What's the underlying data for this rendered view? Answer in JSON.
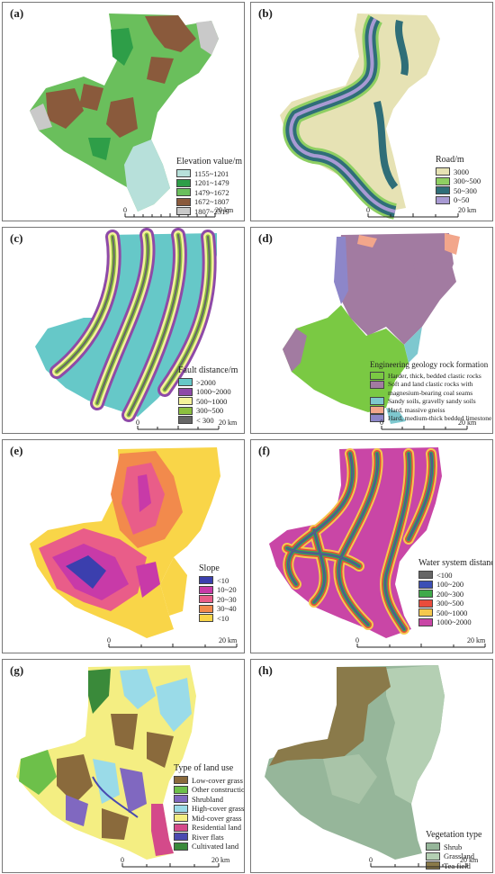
{
  "panels": [
    {
      "id": "a",
      "label": "(a)",
      "title": "Elevation value/m",
      "legend": [
        {
          "label": "1155~1201",
          "color": "#b7e0da"
        },
        {
          "label": "1201~1479",
          "color": "#2e9e48"
        },
        {
          "label": "1479~1672",
          "color": "#6abf5c"
        },
        {
          "label": "1672~1807",
          "color": "#8a5a3c"
        },
        {
          "label": "1807~2319",
          "color": "#c9c9c9"
        }
      ],
      "scale": {
        "zero": "0",
        "end": "20 km"
      }
    },
    {
      "id": "b",
      "label": "(b)",
      "title": "Road/m",
      "legend": [
        {
          "label": "3000",
          "color": "#e6e2b4"
        },
        {
          "label": "300~500",
          "color": "#8ecf62"
        },
        {
          "label": "50~300",
          "color": "#2f6e78"
        },
        {
          "label": "0~50",
          "color": "#a89ad3"
        }
      ],
      "scale": {
        "zero": "0",
        "end": "20 km"
      }
    },
    {
      "id": "c",
      "label": "(c)",
      "title": "Fault distance/m",
      "legend": [
        {
          "label": ">2000",
          "color": "#66c8c8"
        },
        {
          "label": "1000~2000",
          "color": "#8e4aa8"
        },
        {
          "label": "500~1000",
          "color": "#f4f29a"
        },
        {
          "label": "300~500",
          "color": "#8cbf3f"
        },
        {
          "label": "< 300",
          "color": "#666666"
        }
      ],
      "scale": {
        "zero": "0",
        "end": "20 km"
      }
    },
    {
      "id": "d",
      "label": "(d)",
      "title": "Engineering geology rock formation",
      "legend": [
        {
          "label": "Harder, thick, bedded clastic rocks",
          "color": "#7ac943"
        },
        {
          "label": "Soft and land clastic rocks with magnesium-bearing coal seams",
          "color": "#a27ba1"
        },
        {
          "label": "Sandy soils, gravelly sandy soils",
          "color": "#7ec8cf"
        },
        {
          "label": "Hard, massive gneiss",
          "color": "#f2a68b"
        },
        {
          "label": "Hard, medium-thick bedded limestone",
          "color": "#8d86c9"
        }
      ],
      "scale": {
        "zero": "0",
        "end": "20 km"
      }
    },
    {
      "id": "e",
      "label": "(e)",
      "title": "Slope",
      "legend": [
        {
          "label": "<10",
          "color": "#3b3fae"
        },
        {
          "label": "10~20",
          "color": "#c83aa8"
        },
        {
          "label": "20~30",
          "color": "#e95d89"
        },
        {
          "label": "30~40",
          "color": "#f28a4c"
        },
        {
          "label": "<10",
          "color": "#f9d548"
        }
      ],
      "scale": {
        "zero": "0",
        "end": "20 km"
      }
    },
    {
      "id": "f",
      "label": "(f)",
      "title": "Water system distance",
      "legend": [
        {
          "label": "<100",
          "color": "#666666"
        },
        {
          "label": "100~200",
          "color": "#3c4fb5"
        },
        {
          "label": "200~300",
          "color": "#3faa4a"
        },
        {
          "label": "300~500",
          "color": "#e94c3c"
        },
        {
          "label": "500~1000",
          "color": "#f5c84d"
        },
        {
          "label": "1000~2000",
          "color": "#c946a6"
        }
      ],
      "scale": {
        "zero": "0",
        "end": "20 km"
      }
    },
    {
      "id": "g",
      "label": "(g)",
      "title": "Type of land use",
      "legend": [
        {
          "label": "Low-cover grass",
          "color": "#8a6a3c"
        },
        {
          "label": "Other construction",
          "color": "#6dc04a"
        },
        {
          "label": "Shrubland",
          "color": "#8068c0"
        },
        {
          "label": "High-cover grass",
          "color": "#9adbe8"
        },
        {
          "label": "Mid-cover grass",
          "color": "#f4ee82"
        },
        {
          "label": "Residential land",
          "color": "#d44a8a"
        },
        {
          "label": "River flats",
          "color": "#4a4ab0"
        },
        {
          "label": "Cultivated land",
          "color": "#3a8a3a"
        }
      ],
      "scale": {
        "zero": "0",
        "end": "20 km"
      }
    },
    {
      "id": "h",
      "label": "(h)",
      "title": "Vegetation type",
      "legend": [
        {
          "label": "Shrub",
          "color": "#96b69a"
        },
        {
          "label": "Grassland",
          "color": "#b4cfb3"
        },
        {
          "label": "Tea field",
          "color": "#8a7a4a"
        }
      ],
      "scale": {
        "zero": "0",
        "end": "20 km"
      }
    }
  ]
}
